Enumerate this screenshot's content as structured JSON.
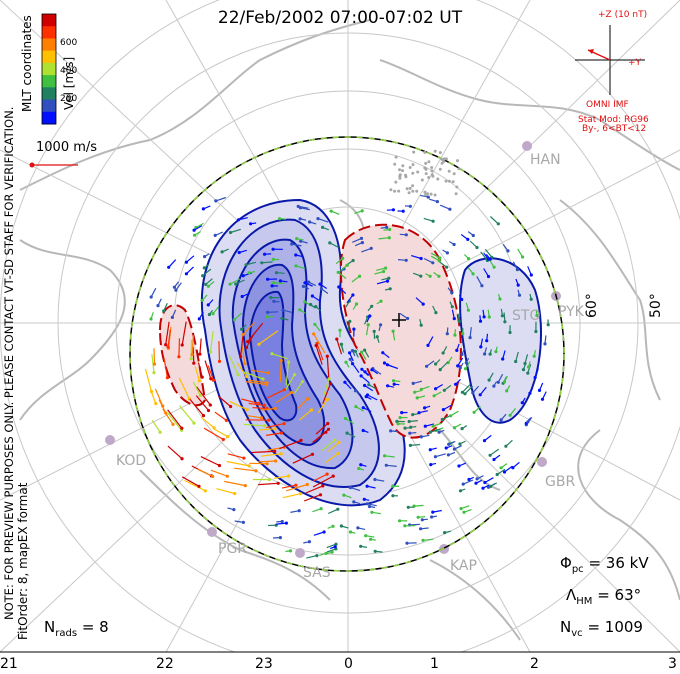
{
  "title": "22/Feb/2002 07:00-07:02 UT",
  "coord_label": "MLT coordinates",
  "colorbar": {
    "label": "Vel [m/s]",
    "ticks": [
      "600",
      "400",
      "200"
    ],
    "colors": [
      "#d00000",
      "#ff3000",
      "#ff8000",
      "#ffc000",
      "#b0e030",
      "#40c040",
      "#208060",
      "#3050c0",
      "#0010ff"
    ]
  },
  "reference_vector": "1000 m/s",
  "imf": {
    "axis_z": "+Z (10 nT)",
    "axis_y": "+Y",
    "source": "OMNI IMF",
    "model_line1": "Stat Mod: RG96",
    "model_line2": "By-, 6<BT<12"
  },
  "notes": {
    "preview": "NOTE: FOR PREVIEW PURPOSES ONLY. PLEASE CONTACT VT-SD STAFF FOR VERIFICATION.",
    "fit": "FitOrder: 8, mapEX format"
  },
  "stats": {
    "nrads_sym": "N",
    "nrads_sub": "rads",
    "nrads_val": "=  8",
    "phi_sym": "Φ",
    "phi_sub": "pc",
    "phi_val": "=  36 kV",
    "lambda_sym": "Λ",
    "lambda_sub": "HM",
    "lambda_val": "=  63°",
    "nvc_sym": "N",
    "nvc_sub": "vc",
    "nvc_val": "=  1009"
  },
  "lat_labels": [
    "60°",
    "50°"
  ],
  "stations": [
    "HAN",
    "STO",
    "PYK",
    "KOD",
    "GBR",
    "PGR",
    "SAS",
    "KAP"
  ],
  "mlt_axis": [
    "21",
    "22",
    "23",
    "0",
    "1",
    "2",
    "3"
  ],
  "legend_colors": {
    "neg_potential": "#0a1aa8",
    "pos_potential": "#c00000",
    "fill_neg": "#7a80e0",
    "fill_pos": "#f0c0c0",
    "grid": "#c8c8c8",
    "coast": "#b8b8b8"
  }
}
